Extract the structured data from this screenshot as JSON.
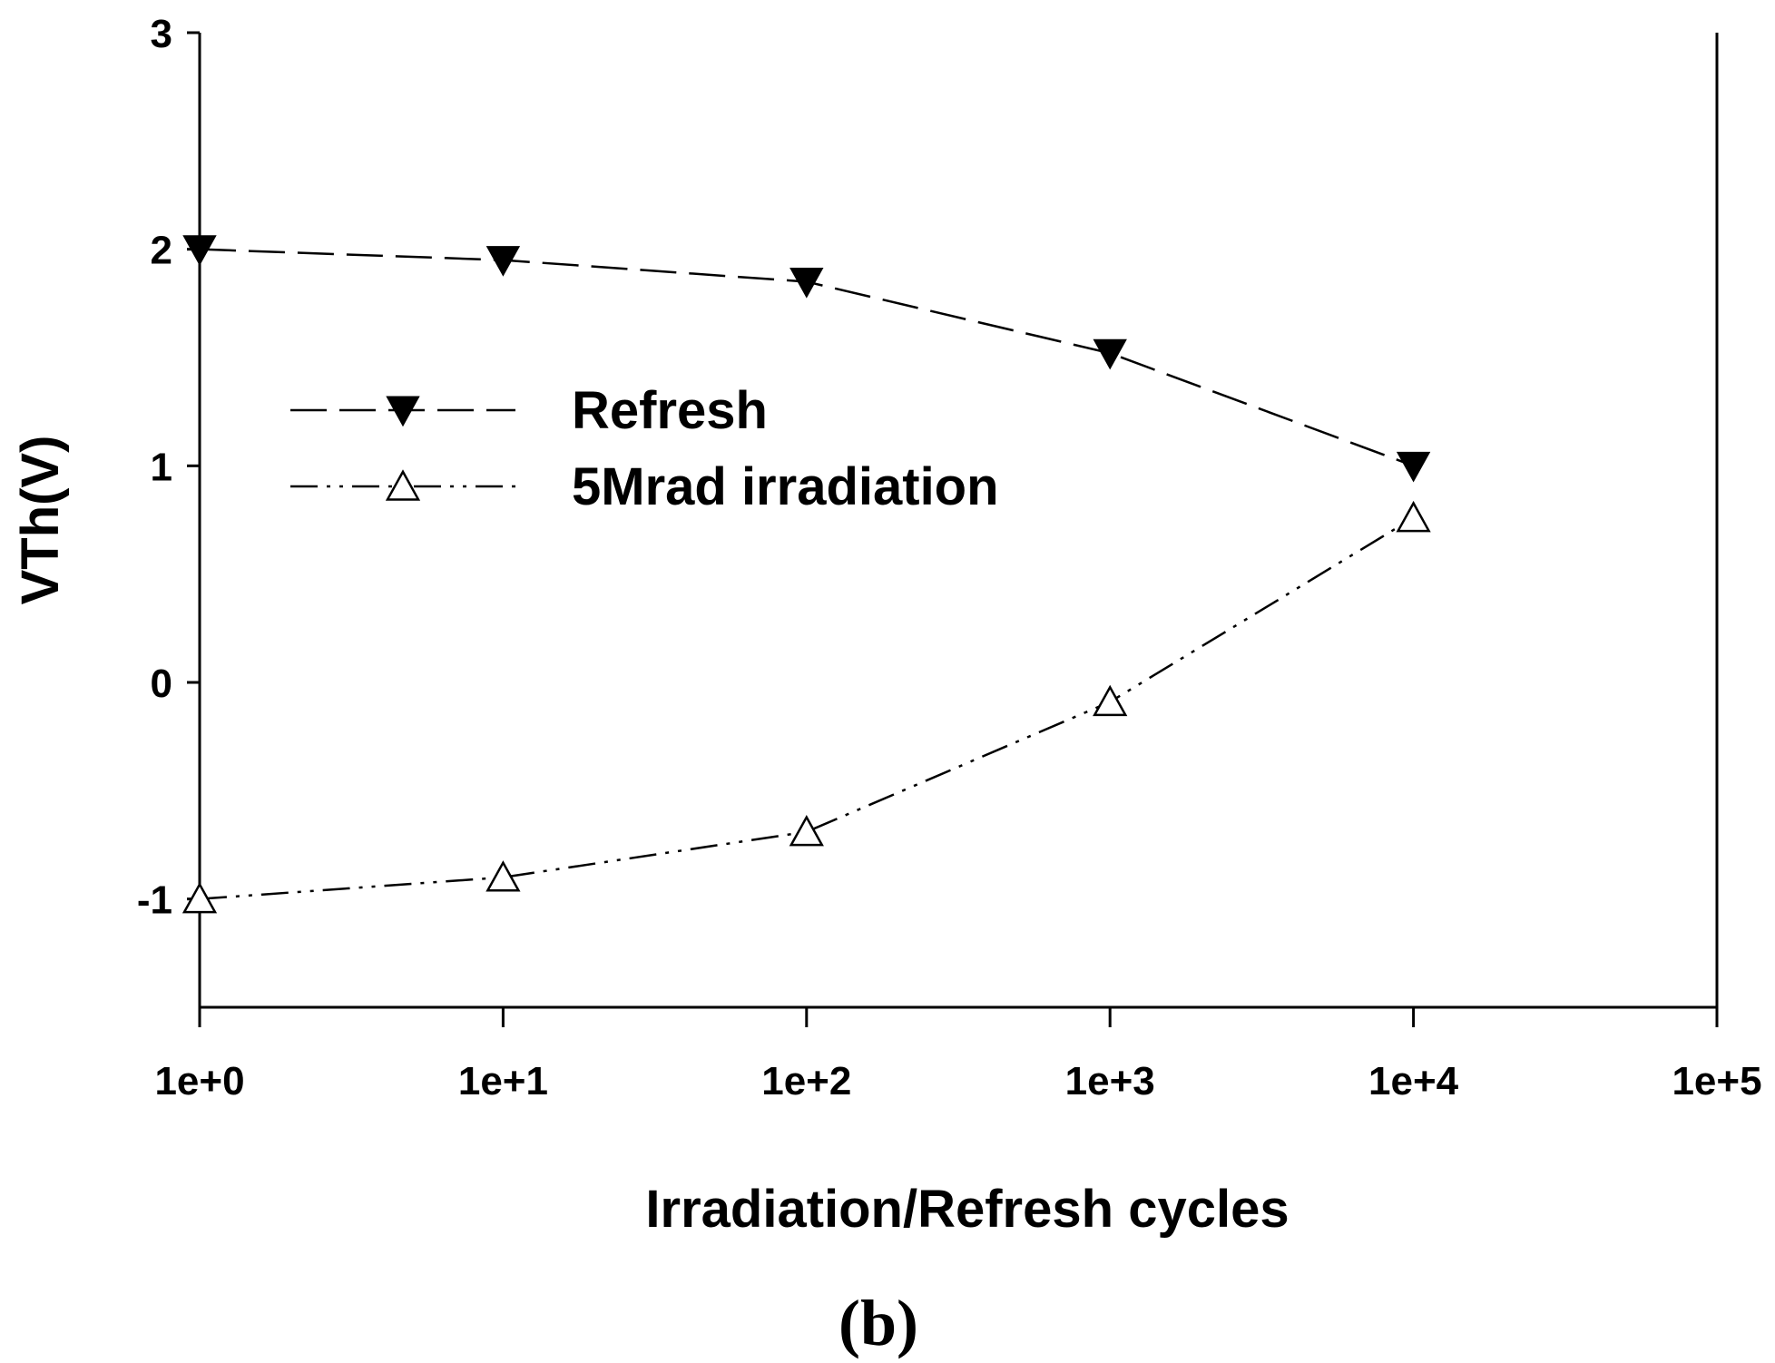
{
  "chart_data": {
    "type": "line",
    "xscale": "log",
    "xlabel": "Irradiation/Refresh cycles",
    "ylabel": "VTh(V)",
    "panel_label": "(b)",
    "xlim": [
      1,
      100000
    ],
    "ylim": [
      -1.5,
      3
    ],
    "x_ticks": [
      {
        "value": 1,
        "label": "1e+0"
      },
      {
        "value": 10,
        "label": "1e+1"
      },
      {
        "value": 100,
        "label": "1e+2"
      },
      {
        "value": 1000,
        "label": "1e+3"
      },
      {
        "value": 10000,
        "label": "1e+4"
      },
      {
        "value": 100000,
        "label": "1e+5"
      }
    ],
    "y_ticks": [
      {
        "value": -1,
        "label": "-1"
      },
      {
        "value": 0,
        "label": "0"
      },
      {
        "value": 1,
        "label": "1"
      },
      {
        "value": 2,
        "label": "2"
      },
      {
        "value": 3,
        "label": "3"
      }
    ],
    "x": [
      1,
      10,
      100,
      1000,
      10000
    ],
    "series": [
      {
        "name": "Refresh",
        "marker": "filled-down-triangle",
        "line_style": "dashed",
        "values": [
          2.0,
          1.95,
          1.85,
          1.52,
          1.0
        ]
      },
      {
        "name": "5Mrad irradiation",
        "marker": "open-up-triangle",
        "line_style": "dash-dot-dot",
        "values": [
          -1.0,
          -0.9,
          -0.69,
          -0.09,
          0.76
        ]
      }
    ],
    "legend_position": "upper-left",
    "grid": false
  }
}
